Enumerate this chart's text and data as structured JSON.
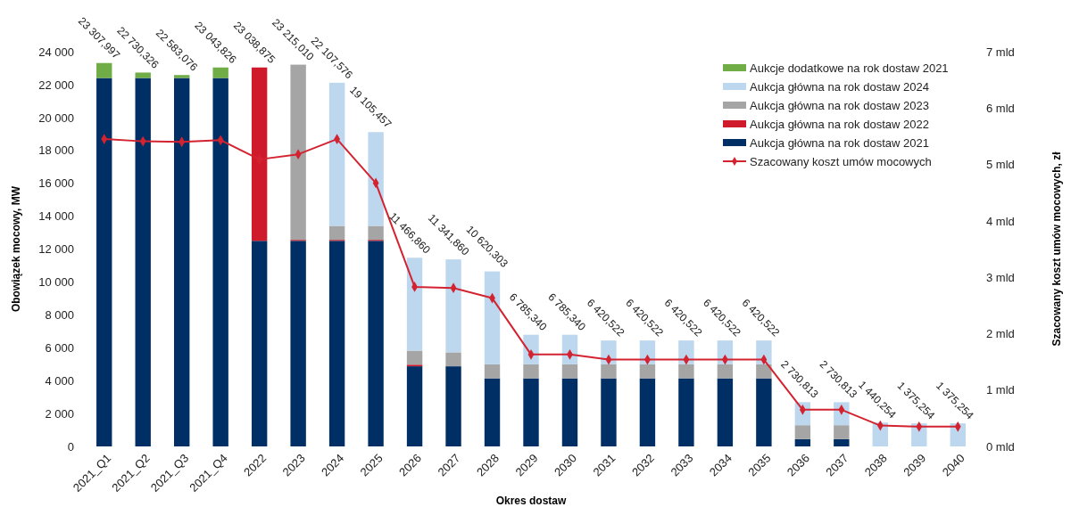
{
  "chart_data": {
    "type": "bar",
    "stacked": true,
    "xlabel": "Okres dostaw",
    "ylabel": "Obowiązek mocowy, MW",
    "y2label": "Szacowany koszt umów mocowych, zł",
    "categories": [
      "2021_Q1",
      "2021_Q2",
      "2021_Q3",
      "2021_Q4",
      "2022",
      "2023",
      "2024",
      "2025",
      "2026",
      "2027",
      "2028",
      "2029",
      "2030",
      "2031",
      "2032",
      "2033",
      "2034",
      "2035",
      "2036",
      "2037",
      "2038",
      "2039",
      "2040"
    ],
    "series": [
      {
        "name": "Aukcja główna na rok dostaw 2021",
        "color": "#002f66",
        "values": [
          22400,
          22400,
          22400,
          22400,
          12500,
          12500,
          12500,
          12500,
          4870,
          4870,
          4140,
          4140,
          4140,
          4140,
          4140,
          4140,
          4140,
          4140,
          440,
          440,
          0,
          0,
          0
        ]
      },
      {
        "name": "Aukcja główna na rok dostaw 2022",
        "color": "#cf1a2c",
        "values": [
          0,
          0,
          0,
          0,
          10540,
          60,
          60,
          60,
          100,
          0,
          0,
          0,
          0,
          0,
          0,
          0,
          0,
          0,
          0,
          0,
          0,
          0,
          0
        ]
      },
      {
        "name": "Aukcja główna na rok dostaw 2023",
        "color": "#a5a5a5",
        "values": [
          0,
          0,
          0,
          0,
          0,
          10650,
          850,
          850,
          850,
          850,
          850,
          850,
          850,
          850,
          850,
          850,
          850,
          850,
          850,
          850,
          0,
          0,
          0
        ]
      },
      {
        "name": "Aukcja główna na rok dostaw 2024",
        "color": "#bdd7ee",
        "values": [
          0,
          0,
          0,
          0,
          0,
          0,
          8700,
          5700,
          5650,
          5650,
          5650,
          1800,
          1800,
          1450,
          1450,
          1450,
          1450,
          1450,
          1400,
          1400,
          1450,
          1400,
          1400
        ]
      },
      {
        "name": "Aukcje dodatkowe na rok dostaw 2021",
        "color": "#70ad47",
        "values": [
          910,
          330,
          180,
          640,
          0,
          0,
          0,
          0,
          0,
          0,
          0,
          0,
          0,
          0,
          0,
          0,
          0,
          0,
          0,
          0,
          0,
          0,
          0
        ]
      },
      {
        "name": "Szacowany koszt umów mocowych",
        "type": "line",
        "axis": "y2",
        "color": "#d42330",
        "marker": "diamond",
        "values": [
          5.45,
          5.41,
          5.4,
          5.43,
          5.09,
          5.18,
          5.45,
          4.67,
          2.83,
          2.81,
          2.63,
          1.63,
          1.63,
          1.54,
          1.54,
          1.54,
          1.54,
          1.54,
          0.65,
          0.65,
          0.37,
          0.35,
          0.35
        ]
      }
    ],
    "totals": [
      "23 307,997",
      "22 730,326",
      "22 583,076",
      "23 043,826",
      "23 038,875",
      "23 215,010",
      "22 107,576",
      "19 105,457",
      "11 466,860",
      "11 341,860",
      "10 620,303",
      "6 785,340",
      "6 785,340",
      "6 420,522",
      "6 420,522",
      "6 420,522",
      "6 420,522",
      "6 420,522",
      "2 730,813",
      "2 730,813",
      "1 440,254",
      "1 375,254",
      "1 375,254"
    ],
    "ylim": [
      0,
      24000
    ],
    "yticks": [
      0,
      {
        "value": 2000,
        "label": "2 000"
      },
      {
        "value": 4000,
        "label": "4 000"
      },
      {
        "value": 6000,
        "label": "6 000"
      },
      {
        "value": 8000,
        "label": "8 000"
      },
      {
        "value": 10000,
        "label": "10 000"
      },
      {
        "value": 12000,
        "label": "12 000"
      },
      {
        "value": 14000,
        "label": "14 000"
      },
      {
        "value": 16000,
        "label": "16 000"
      },
      {
        "value": 18000,
        "label": "18 000"
      },
      {
        "value": 20000,
        "label": "20 000"
      },
      {
        "value": 22000,
        "label": "22 000"
      },
      {
        "value": 24000,
        "label": "24 000"
      }
    ],
    "y2lim": [
      0,
      7
    ],
    "y2ticks": [
      {
        "value": 0,
        "label": "0 mld"
      },
      {
        "value": 1,
        "label": "1 mld"
      },
      {
        "value": 2,
        "label": "2 mld"
      },
      {
        "value": 3,
        "label": "3 mld"
      },
      {
        "value": 4,
        "label": "4 mld"
      },
      {
        "value": 5,
        "label": "5 mld"
      },
      {
        "value": 6,
        "label": "6 mld"
      },
      {
        "value": 7,
        "label": "7 mld"
      }
    ],
    "legend": "top right",
    "grid": false
  }
}
